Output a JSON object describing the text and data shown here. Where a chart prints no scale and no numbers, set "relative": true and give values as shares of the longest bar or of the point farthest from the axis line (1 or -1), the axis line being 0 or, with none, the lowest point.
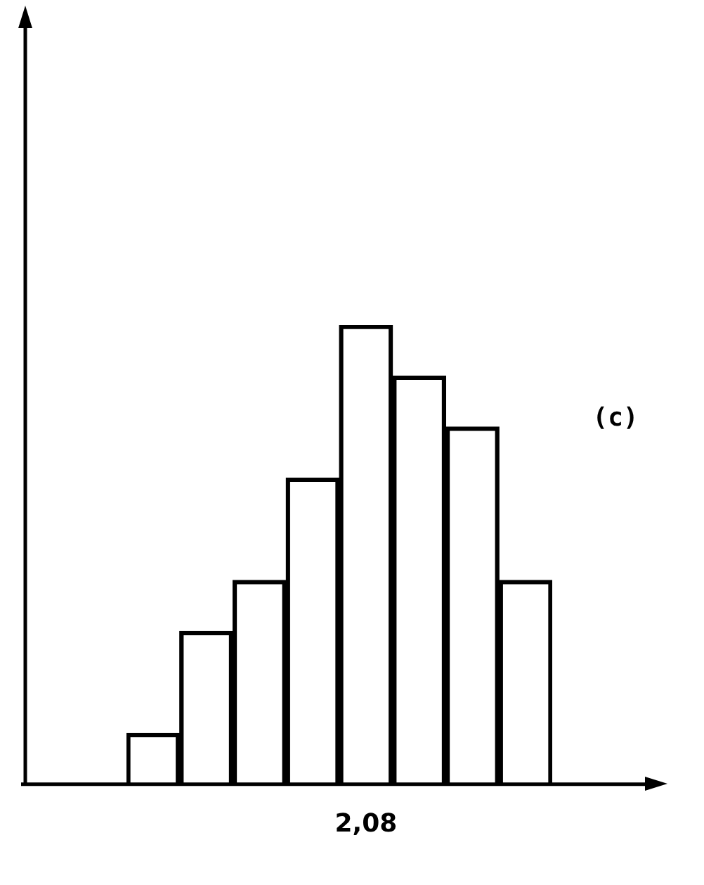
{
  "chart_data": {
    "type": "bar",
    "relative": true,
    "categories": [
      null,
      null,
      null,
      null,
      "2,08",
      null,
      null,
      null
    ],
    "values": [
      0.111,
      0.333,
      0.444,
      0.667,
      1,
      0.889,
      0.778,
      0.444
    ],
    "color": "#000000",
    "annotations": [
      "(c)"
    ]
  }
}
